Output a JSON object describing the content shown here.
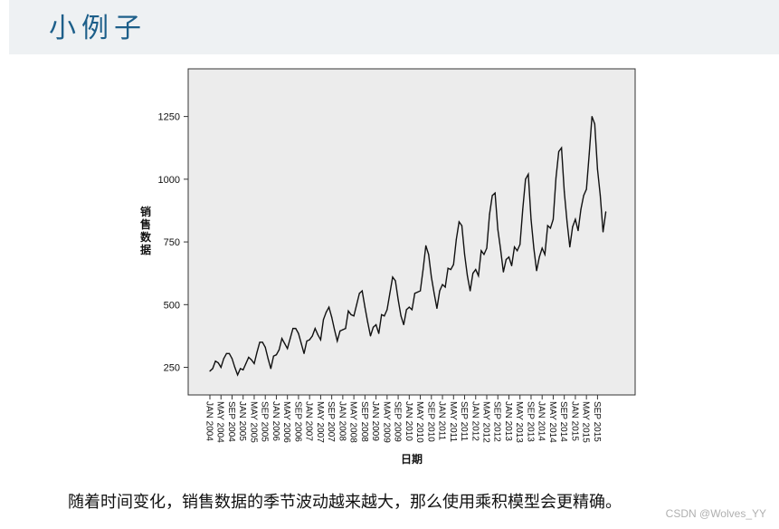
{
  "page": {
    "title": "小例子",
    "caption": "随着时间变化，销售数据的季节波动越来越大，那么使用乘积模型会更精确。",
    "watermark": "CSDN @Wolves_YY"
  },
  "colors": {
    "title_bar": "#eef1f3",
    "title_text": "#1d5f8a",
    "plot_background": "#ececec",
    "line": "#111111"
  },
  "chart_data": {
    "type": "line",
    "title": "",
    "xlabel": "日期",
    "ylabel": "销售数据",
    "ylim": [
      140,
      1440
    ],
    "y_ticks": [
      250,
      500,
      750,
      1000,
      1250
    ],
    "x_tick_labels": [
      "JAN 2004",
      "MAY 2004",
      "SEP 2004",
      "JAN 2005",
      "MAY 2005",
      "SEP 2005",
      "JAN 2006",
      "MAY 2006",
      "SEP 2006",
      "JAN 2007",
      "MAY 2007",
      "SEP 2007",
      "JAN 2008",
      "MAY 2008",
      "SEP 2008",
      "JAN 2009",
      "MAY 2009",
      "SEP 2009",
      "JAN 2010",
      "MAY 2010",
      "SEP 2010",
      "JAN 2011",
      "MAY 2011",
      "SEP 2011",
      "JAN 2012",
      "MAY 2012",
      "SEP 2012",
      "JAN 2013",
      "MAY 2013",
      "SEP 2013",
      "JAN 2014",
      "MAY 2014",
      "SEP 2014",
      "JAN 2015",
      "MAY 2015",
      "SEP 2015"
    ],
    "grid": false,
    "series": [
      {
        "values": [
          235,
          245,
          275,
          268,
          250,
          285,
          305,
          305,
          285,
          250,
          220,
          245,
          240,
          265,
          290,
          280,
          265,
          310,
          350,
          350,
          330,
          285,
          245,
          295,
          300,
          320,
          365,
          345,
          325,
          365,
          405,
          405,
          385,
          345,
          305,
          355,
          360,
          375,
          405,
          380,
          360,
          440,
          470,
          490,
          450,
          400,
          355,
          395,
          400,
          405,
          475,
          460,
          455,
          500,
          545,
          555,
          490,
          430,
          375,
          410,
          420,
          385,
          460,
          455,
          480,
          545,
          610,
          595,
          520,
          455,
          420,
          480,
          490,
          480,
          545,
          550,
          555,
          640,
          735,
          700,
          610,
          545,
          485,
          555,
          580,
          570,
          645,
          640,
          660,
          760,
          830,
          815,
          700,
          615,
          555,
          625,
          640,
          615,
          715,
          700,
          725,
          860,
          935,
          945,
          800,
          720,
          630,
          680,
          690,
          655,
          730,
          715,
          740,
          880,
          1000,
          1020,
          840,
          725,
          635,
          690,
          725,
          700,
          815,
          805,
          840,
          1005,
          1110,
          1125,
          950,
          830,
          730,
          810,
          840,
          795,
          880,
          935,
          960,
          1100,
          1250,
          1220,
          1040,
          935,
          790,
          870
        ]
      }
    ]
  }
}
